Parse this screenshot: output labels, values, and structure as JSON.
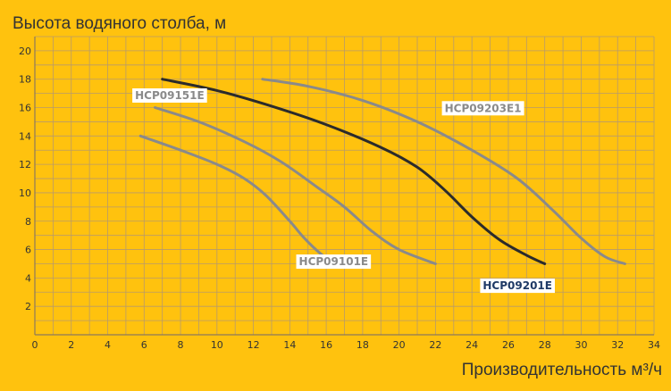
{
  "chart_data": {
    "type": "line",
    "title": "",
    "ylabel": "Высота водяного столба, м",
    "xlabel": "Производительность м³/ч",
    "xlim": [
      0,
      34
    ],
    "ylim": [
      0,
      21
    ],
    "x_ticks": [
      0,
      2,
      4,
      6,
      8,
      10,
      12,
      14,
      16,
      18,
      20,
      22,
      24,
      26,
      28,
      30,
      32,
      34
    ],
    "y_ticks": [
      2,
      4,
      6,
      8,
      10,
      12,
      14,
      16,
      18,
      20
    ],
    "grid": true,
    "series": [
      {
        "name": "HCP09101E",
        "color": "#8A8A8A",
        "text_color": "#8A8A8A",
        "points": [
          [
            5.8,
            14.0
          ],
          [
            8.0,
            13.0
          ],
          [
            10.0,
            12.0
          ],
          [
            11.5,
            11.0
          ],
          [
            12.7,
            9.8
          ],
          [
            14.0,
            8.0
          ],
          [
            14.8,
            6.8
          ],
          [
            15.7,
            5.7
          ],
          [
            16.6,
            4.9
          ]
        ]
      },
      {
        "name": "HCP09151E",
        "color": "#8A8A8A",
        "text_color": "#8A8A8A",
        "points": [
          [
            6.6,
            16.0
          ],
          [
            9.0,
            15.0
          ],
          [
            11.5,
            13.6
          ],
          [
            13.5,
            12.2
          ],
          [
            15.5,
            10.4
          ],
          [
            17.0,
            9.0
          ],
          [
            18.5,
            7.3
          ],
          [
            20.0,
            6.0
          ],
          [
            22.0,
            5.0
          ]
        ]
      },
      {
        "name": "HCP09201E",
        "color": "#2B2B2B",
        "text_color": "#1F3A66",
        "points": [
          [
            7.0,
            18.0
          ],
          [
            10.0,
            17.2
          ],
          [
            13.0,
            16.1
          ],
          [
            16.0,
            14.8
          ],
          [
            19.0,
            13.2
          ],
          [
            21.0,
            11.8
          ],
          [
            22.5,
            10.2
          ],
          [
            24.0,
            8.3
          ],
          [
            25.5,
            6.7
          ],
          [
            27.0,
            5.6
          ],
          [
            28.0,
            5.0
          ]
        ]
      },
      {
        "name": "HCP09203E1",
        "color": "#8A8A8A",
        "text_color": "#8A8A8A",
        "points": [
          [
            12.5,
            18.0
          ],
          [
            15.0,
            17.5
          ],
          [
            18.0,
            16.5
          ],
          [
            21.0,
            15.0
          ],
          [
            24.0,
            13.0
          ],
          [
            26.5,
            11.0
          ],
          [
            28.5,
            8.7
          ],
          [
            30.0,
            6.8
          ],
          [
            31.3,
            5.5
          ],
          [
            32.4,
            5.0
          ]
        ]
      }
    ],
    "label_positions": {
      "HCP09101E": [
        14.5,
        4.9
      ],
      "HCP09151E": [
        5.5,
        16.6
      ],
      "HCP09201E": [
        24.6,
        3.2
      ],
      "HCP09203E1": [
        22.5,
        15.7
      ]
    }
  }
}
